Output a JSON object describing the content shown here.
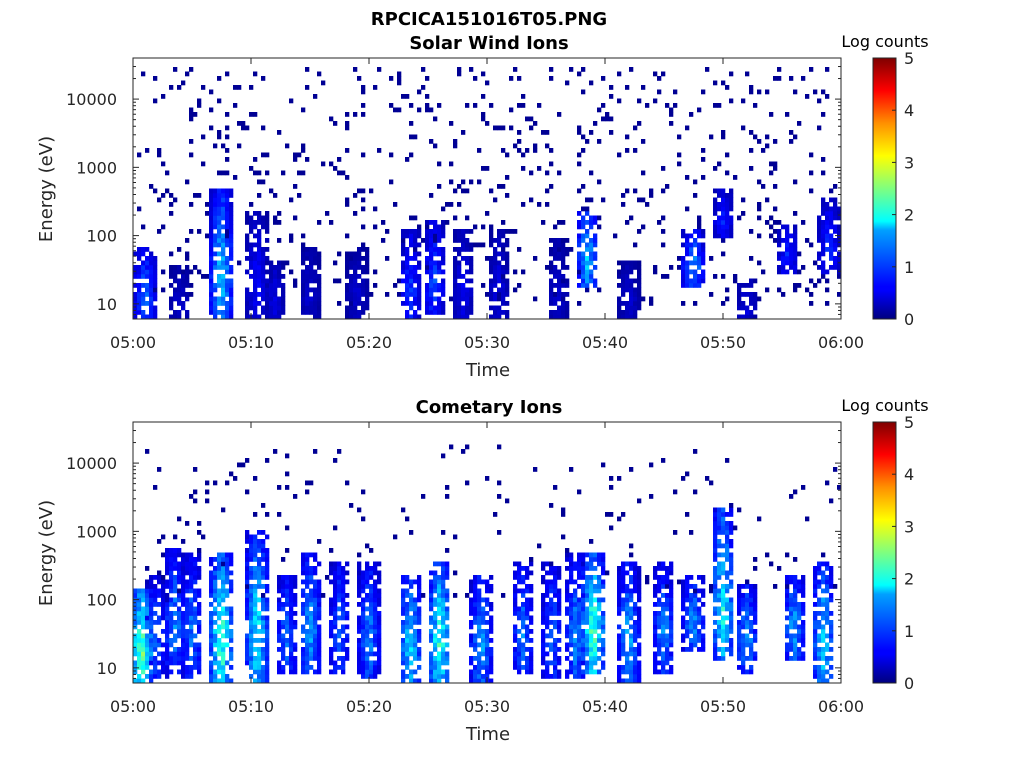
{
  "figure_title": "RPCICA151016T05.PNG",
  "chart_data": [
    {
      "type": "heatmap",
      "title": "Solar Wind Ions",
      "xlabel": "Time",
      "ylabel": "Energy (eV)",
      "x_ticks": [
        "05:00",
        "05:10",
        "05:20",
        "05:30",
        "05:40",
        "05:50",
        "06:00"
      ],
      "x_range": [
        "05:00",
        "06:00"
      ],
      "y_scale": "log",
      "y_ticks": [
        "10",
        "100",
        "1000",
        "10000"
      ],
      "y_range": [
        6,
        40000
      ],
      "colorbar": {
        "title": "Log counts",
        "ticks": [
          "0",
          "1",
          "2",
          "3",
          "4",
          "5"
        ],
        "range": [
          0,
          5
        ],
        "colormap": "jet"
      },
      "bursts": [
        {
          "t": "05:01",
          "emin": 6,
          "emax": 60,
          "peak": 1.4
        },
        {
          "t": "05:04",
          "emin": 6,
          "emax": 30,
          "peak": 0.5
        },
        {
          "t": "05:07.5",
          "emin": 6,
          "emax": 400,
          "peak": 2.0
        },
        {
          "t": "05:10.5",
          "emin": 6,
          "emax": 200,
          "peak": 0.8
        },
        {
          "t": "05:12",
          "emin": 6,
          "emax": 40,
          "peak": 0.6
        },
        {
          "t": "05:15",
          "emin": 6,
          "emax": 60,
          "peak": 0.5
        },
        {
          "t": "05:19",
          "emin": 6,
          "emax": 60,
          "peak": 0.5
        },
        {
          "t": "05:23.5",
          "emin": 6,
          "emax": 100,
          "peak": 1.1
        },
        {
          "t": "05:25.5",
          "emin": 8,
          "emax": 150,
          "peak": 1.2
        },
        {
          "t": "05:28",
          "emin": 6,
          "emax": 100,
          "peak": 0.7
        },
        {
          "t": "05:31",
          "emin": 6,
          "emax": 100,
          "peak": 0.6
        },
        {
          "t": "05:36",
          "emin": 6,
          "emax": 80,
          "peak": 0.5
        },
        {
          "t": "05:38.5",
          "emin": 20,
          "emax": 200,
          "peak": 1.9
        },
        {
          "t": "05:42",
          "emin": 6,
          "emax": 40,
          "peak": 0.5
        },
        {
          "t": "05:47.5",
          "emin": 20,
          "emax": 100,
          "peak": 1.6
        },
        {
          "t": "05:50",
          "emin": 100,
          "emax": 400,
          "peak": 0.9
        },
        {
          "t": "05:52",
          "emin": 6,
          "emax": 20,
          "peak": 0.6
        },
        {
          "t": "05:55.5",
          "emin": 30,
          "emax": 120,
          "peak": 1.0
        },
        {
          "t": "05:59",
          "emin": 30,
          "emax": 300,
          "peak": 1.0
        }
      ],
      "background": {
        "emin": 10,
        "emax": 30000,
        "level": 0.1,
        "density": 0.07
      }
    },
    {
      "type": "heatmap",
      "title": "Cometary Ions",
      "xlabel": "Time",
      "ylabel": "Energy (eV)",
      "x_ticks": [
        "05:00",
        "05:10",
        "05:20",
        "05:30",
        "05:40",
        "05:50",
        "06:00"
      ],
      "x_range": [
        "05:00",
        "06:00"
      ],
      "y_scale": "log",
      "y_ticks": [
        "10",
        "100",
        "1000",
        "10000"
      ],
      "y_range": [
        6,
        40000
      ],
      "colorbar": {
        "title": "Log counts",
        "ticks": [
          "0",
          "1",
          "2",
          "3",
          "4",
          "5"
        ],
        "range": [
          0,
          5
        ],
        "colormap": "jet"
      },
      "bursts": [
        {
          "t": "05:00.7",
          "emin": 6,
          "emax": 120,
          "peak": 3.0
        },
        {
          "t": "05:02",
          "emin": 8,
          "emax": 200,
          "peak": 1.3
        },
        {
          "t": "05:03.5",
          "emin": 10,
          "emax": 500,
          "peak": 1.6
        },
        {
          "t": "05:05",
          "emin": 8,
          "emax": 400,
          "peak": 1.5
        },
        {
          "t": "05:07.5",
          "emin": 6,
          "emax": 400,
          "peak": 2.8
        },
        {
          "t": "05:10.5",
          "emin": 6,
          "emax": 900,
          "peak": 2.3
        },
        {
          "t": "05:13",
          "emin": 10,
          "emax": 200,
          "peak": 1.5
        },
        {
          "t": "05:15",
          "emin": 10,
          "emax": 400,
          "peak": 1.8
        },
        {
          "t": "05:17.5",
          "emin": 10,
          "emax": 300,
          "peak": 1.4
        },
        {
          "t": "05:20",
          "emin": 8,
          "emax": 300,
          "peak": 1.6
        },
        {
          "t": "05:23.5",
          "emin": 6,
          "emax": 200,
          "peak": 2.2
        },
        {
          "t": "05:26",
          "emin": 6,
          "emax": 300,
          "peak": 2.6
        },
        {
          "t": "05:29.5",
          "emin": 6,
          "emax": 200,
          "peak": 1.8
        },
        {
          "t": "05:33",
          "emin": 10,
          "emax": 300,
          "peak": 1.5
        },
        {
          "t": "05:35.5",
          "emin": 8,
          "emax": 300,
          "peak": 1.4
        },
        {
          "t": "05:37.5",
          "emin": 8,
          "emax": 400,
          "peak": 1.6
        },
        {
          "t": "05:39",
          "emin": 10,
          "emax": 400,
          "peak": 2.8
        },
        {
          "t": "05:42",
          "emin": 6,
          "emax": 300,
          "peak": 1.8
        },
        {
          "t": "05:45",
          "emin": 10,
          "emax": 300,
          "peak": 1.6
        },
        {
          "t": "05:47.5",
          "emin": 20,
          "emax": 200,
          "peak": 1.7
        },
        {
          "t": "05:50",
          "emin": 15,
          "emax": 2000,
          "peak": 2.3
        },
        {
          "t": "05:52",
          "emin": 10,
          "emax": 150,
          "peak": 1.7
        },
        {
          "t": "05:56",
          "emin": 15,
          "emax": 200,
          "peak": 1.8
        },
        {
          "t": "05:58.5",
          "emin": 6,
          "emax": 300,
          "peak": 2.1
        }
      ],
      "background": {
        "emin": 100,
        "emax": 20000,
        "level": 0.1,
        "density": 0.03
      }
    }
  ]
}
